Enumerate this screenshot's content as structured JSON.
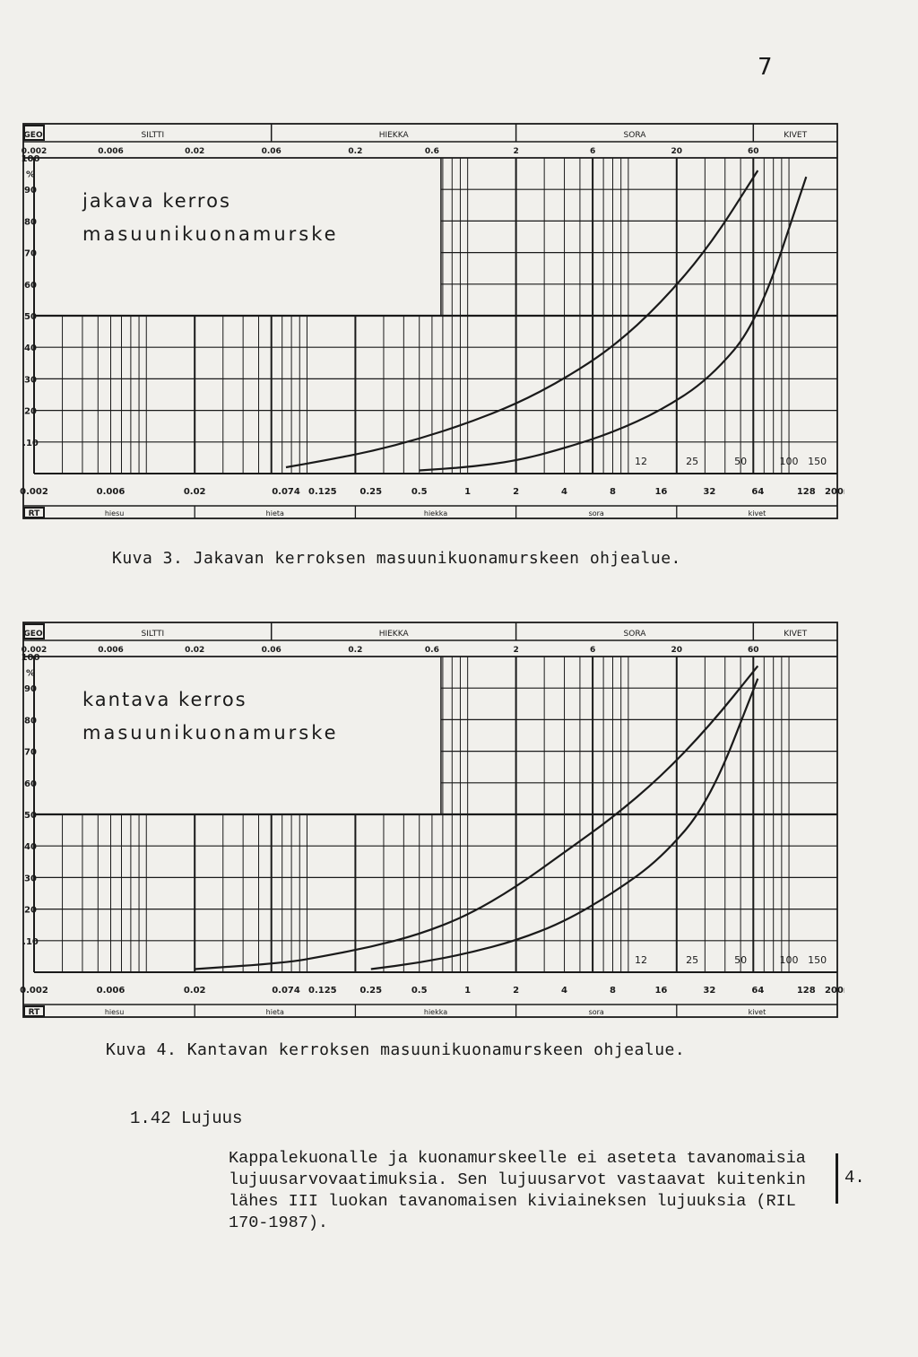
{
  "page_number": "7",
  "figures": [
    {
      "top_label": "GEO",
      "top_classes": [
        "SILTTI",
        "HIEKKA",
        "SORA",
        "KIVET"
      ],
      "top_ticks": [
        "0.002",
        "0.006",
        "0.02",
        "0.06",
        "0.2",
        "0.6",
        "2",
        "6",
        "20",
        "60"
      ],
      "y_ticks": [
        "100",
        "%",
        "90",
        "80",
        "70",
        "60",
        "50",
        "40",
        "30",
        "20",
        ".10"
      ],
      "title_line1": "jakava    kerros",
      "title_line2": "masuunikuonamurske",
      "inner_ticks": [
        "12",
        "25",
        "50",
        "100",
        "150"
      ],
      "bottom_ticks": [
        "0.002",
        "0.006",
        "0.02",
        "0.074",
        "0.125",
        "0.25",
        "0.5",
        "1",
        "2",
        "4",
        "8",
        "16",
        "32",
        "64",
        "128",
        "200mm"
      ],
      "bottom_label": "RT",
      "bottom_classes": [
        "hiesu",
        "hieta",
        "hiekka",
        "sora",
        "kivet"
      ],
      "caption": "Kuva 3. Jakavan kerroksen masuunikuonamurskeen ohjealue."
    },
    {
      "top_label": "GEO",
      "top_classes": [
        "SILTTI",
        "HIEKKA",
        "SORA",
        "KIVET"
      ],
      "top_ticks": [
        "0.002",
        "0.006",
        "0.02",
        "0.06",
        "0.2",
        "0.6",
        "2",
        "6",
        "20",
        "60"
      ],
      "y_ticks": [
        "100",
        "%",
        "90",
        "80",
        "70",
        "60",
        "50",
        "40",
        "30",
        "20",
        ".10"
      ],
      "title_line1": "kantava    kerros",
      "title_line2": "masuunikuonamurske",
      "inner_ticks": [
        "12",
        "25",
        "50",
        "100",
        "150"
      ],
      "bottom_ticks": [
        "0.002",
        "0.006",
        "0.02",
        "0.074",
        "0.125",
        "0.25",
        "0.5",
        "1",
        "2",
        "4",
        "8",
        "16",
        "32",
        "64",
        "128",
        "200mm"
      ],
      "bottom_label": "RT",
      "bottom_classes": [
        "hiesu",
        "hieta",
        "hiekka",
        "sora",
        "kivet"
      ],
      "caption": "Kuva 4. Kantavan kerroksen masuunikuonamurskeen ohjealue."
    }
  ],
  "chart_data": [
    {
      "type": "line",
      "x_scale": "log",
      "xlim": [
        0.002,
        200
      ],
      "ylim": [
        0,
        100
      ],
      "grid": true,
      "series": [
        {
          "x": [
            0.074,
            0.125,
            0.25,
            0.5,
            1,
            2,
            4,
            8,
            16,
            32,
            64
          ],
          "values": [
            2,
            4,
            7,
            11,
            16,
            22,
            30,
            40,
            54,
            72,
            96
          ]
        },
        {
          "x": [
            0.5,
            1,
            2,
            4,
            8,
            16,
            32,
            64,
            128
          ],
          "values": [
            1,
            2,
            4,
            8,
            13,
            20,
            30,
            48,
            94
          ]
        }
      ]
    },
    {
      "type": "line",
      "x_scale": "log",
      "xlim": [
        0.002,
        200
      ],
      "ylim": [
        0,
        100
      ],
      "grid": true,
      "series": [
        {
          "x": [
            0.02,
            0.074,
            0.125,
            0.25,
            0.5,
            1,
            2,
            4,
            8,
            16,
            32,
            64
          ],
          "values": [
            1,
            3,
            5,
            8,
            12,
            18,
            27,
            38,
            49,
            62,
            78,
            97
          ]
        },
        {
          "x": [
            0.25,
            0.5,
            1,
            2,
            4,
            8,
            16,
            32,
            64
          ],
          "values": [
            1,
            3,
            6,
            10,
            16,
            25,
            36,
            54,
            93
          ]
        }
      ]
    }
  ],
  "section": {
    "heading": "1.42 Lujuus",
    "lines": [
      "Kappalekuonalle ja kuonamurskeelle ei aseteta tavanomaisia",
      "lujuusarvovaatimuksia. Sen lujuusarvot vastaavat kuitenkin",
      "lähes III luokan tavanomaisen kiviaineksen lujuuksia (RIL",
      "170-1987)."
    ],
    "margin_note": "4."
  }
}
